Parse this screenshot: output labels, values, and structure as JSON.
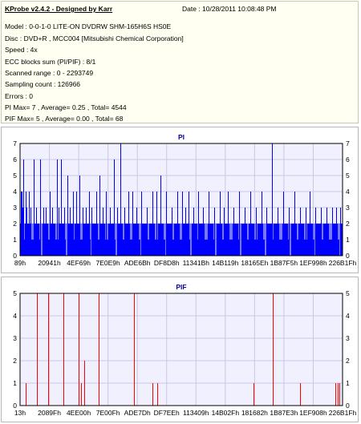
{
  "info": {
    "title": "KProbe v2.4.2 - Designed by Karr",
    "date": "Date : 10/28/2011 10:08:48 PM",
    "lines": [
      "Model : 0-0-1-0 LITE-ON DVDRW SHM-165H6S HS0E",
      "Disc : DVD+R , MCC004 [Mitsubishi Chemical Corporation]",
      "Speed : 4x",
      "ECC blocks sum (PI/PIF) : 8/1",
      "Scanned range : 0 - 2293749",
      "Sampling count : 126966",
      "Errors : 0",
      "PI Max= 7 , Average= 0.25 , Total= 4544",
      "PIF Max= 5 , Average= 0.00 , Total= 68"
    ]
  },
  "colors": {
    "pi_series": "#0000ff",
    "pif_series": "#ff0000",
    "plot_background": "#f0f0ff",
    "grid": "#c8c8e6",
    "title_text": "#0000a0"
  },
  "chart_data": [
    {
      "type": "bar",
      "title": "PI",
      "xlabel": "",
      "ylabel": "",
      "ylim": [
        0,
        7
      ],
      "y_ticks": [
        0,
        1,
        2,
        3,
        4,
        5,
        6,
        7
      ],
      "y_ticks_mirrored_right": true,
      "grid": true,
      "x_range_lba": [
        0,
        2293749
      ],
      "x_tick_labels": [
        "89h",
        "20941h",
        "4EF69h",
        "7E0E9h",
        "ADE6Bh",
        "DF8D8h",
        "11341Bh",
        "14B119h",
        "18165Eh",
        "1B87F5h",
        "1EF998h",
        "226B1Fh"
      ],
      "baseline_level": 2,
      "spikes": [
        {
          "x": 3500,
          "value": 4
        },
        {
          "x": 9000,
          "value": 4
        },
        {
          "x": 16000,
          "value": 3
        },
        {
          "x": 22000,
          "value": 6
        },
        {
          "x": 38000,
          "value": 4
        },
        {
          "x": 45000,
          "value": 3
        },
        {
          "x": 60000,
          "value": 4
        },
        {
          "x": 72000,
          "value": 3
        },
        {
          "x": 95000,
          "value": 6
        },
        {
          "x": 112000,
          "value": 3
        },
        {
          "x": 140000,
          "value": 6
        },
        {
          "x": 168000,
          "value": 3
        },
        {
          "x": 185000,
          "value": 3
        },
        {
          "x": 210000,
          "value": 4
        },
        {
          "x": 230000,
          "value": 3
        },
        {
          "x": 262000,
          "value": 6
        },
        {
          "x": 275000,
          "value": 3
        },
        {
          "x": 290000,
          "value": 6
        },
        {
          "x": 315000,
          "value": 3
        },
        {
          "x": 335000,
          "value": 5
        },
        {
          "x": 352000,
          "value": 3
        },
        {
          "x": 375000,
          "value": 4
        },
        {
          "x": 400000,
          "value": 4
        },
        {
          "x": 420000,
          "value": 5
        },
        {
          "x": 445000,
          "value": 3
        },
        {
          "x": 470000,
          "value": 3
        },
        {
          "x": 490000,
          "value": 4
        },
        {
          "x": 505000,
          "value": 3
        },
        {
          "x": 540000,
          "value": 4
        },
        {
          "x": 565000,
          "value": 5
        },
        {
          "x": 590000,
          "value": 3
        },
        {
          "x": 610000,
          "value": 4
        },
        {
          "x": 640000,
          "value": 3
        },
        {
          "x": 668000,
          "value": 6
        },
        {
          "x": 690000,
          "value": 3
        },
        {
          "x": 712000,
          "value": 7
        },
        {
          "x": 740000,
          "value": 3
        },
        {
          "x": 770000,
          "value": 4
        },
        {
          "x": 800000,
          "value": 4
        },
        {
          "x": 830000,
          "value": 3
        },
        {
          "x": 860000,
          "value": 4
        },
        {
          "x": 900000,
          "value": 3
        },
        {
          "x": 940000,
          "value": 4
        },
        {
          "x": 970000,
          "value": 4
        },
        {
          "x": 1000000,
          "value": 5
        },
        {
          "x": 1040000,
          "value": 4
        },
        {
          "x": 1080000,
          "value": 3
        },
        {
          "x": 1120000,
          "value": 4
        },
        {
          "x": 1150000,
          "value": 4
        },
        {
          "x": 1175000,
          "value": 3
        },
        {
          "x": 1200000,
          "value": 4
        },
        {
          "x": 1235000,
          "value": 3
        },
        {
          "x": 1265000,
          "value": 4
        },
        {
          "x": 1300000,
          "value": 3
        },
        {
          "x": 1340000,
          "value": 4
        },
        {
          "x": 1380000,
          "value": 3
        },
        {
          "x": 1420000,
          "value": 4
        },
        {
          "x": 1450000,
          "value": 3
        },
        {
          "x": 1480000,
          "value": 4
        },
        {
          "x": 1520000,
          "value": 3
        },
        {
          "x": 1560000,
          "value": 4
        },
        {
          "x": 1600000,
          "value": 3
        },
        {
          "x": 1640000,
          "value": 4
        },
        {
          "x": 1680000,
          "value": 3
        },
        {
          "x": 1720000,
          "value": 4
        },
        {
          "x": 1750000,
          "value": 3
        },
        {
          "x": 1790000,
          "value": 7
        },
        {
          "x": 1830000,
          "value": 3
        },
        {
          "x": 1870000,
          "value": 4
        },
        {
          "x": 1910000,
          "value": 3
        },
        {
          "x": 1950000,
          "value": 4
        },
        {
          "x": 1990000,
          "value": 3
        },
        {
          "x": 2030000,
          "value": 3
        },
        {
          "x": 2060000,
          "value": 4
        },
        {
          "x": 2100000,
          "value": 3
        },
        {
          "x": 2140000,
          "value": 3
        },
        {
          "x": 2180000,
          "value": 3
        },
        {
          "x": 2220000,
          "value": 3
        },
        {
          "x": 2250000,
          "value": 3
        },
        {
          "x": 2275000,
          "value": 3
        }
      ]
    },
    {
      "type": "bar",
      "title": "PIF",
      "xlabel": "",
      "ylabel": "",
      "ylim": [
        0,
        5
      ],
      "y_ticks": [
        0,
        1,
        2,
        3,
        4,
        5
      ],
      "y_ticks_mirrored_right": true,
      "grid": true,
      "x_range_lba": [
        0,
        2293749
      ],
      "x_tick_labels": [
        "13h",
        "2089Fh",
        "4EE00h",
        "7E00Fh",
        "ADE7Dh",
        "DF7EEh",
        "113409h",
        "14B02Fh",
        "181682h",
        "1B87E3h",
        "1EF908h",
        "226B1Fh"
      ],
      "spikes": [
        {
          "x": 40000,
          "value": 1
        },
        {
          "x": 118000,
          "value": 5
        },
        {
          "x": 200000,
          "value": 5
        },
        {
          "x": 310000,
          "value": 5
        },
        {
          "x": 418000,
          "value": 5
        },
        {
          "x": 435000,
          "value": 1
        },
        {
          "x": 455000,
          "value": 2
        },
        {
          "x": 560000,
          "value": 5
        },
        {
          "x": 808000,
          "value": 5
        },
        {
          "x": 940000,
          "value": 1
        },
        {
          "x": 975000,
          "value": 1
        },
        {
          "x": 1660000,
          "value": 1
        },
        {
          "x": 1800000,
          "value": 5
        },
        {
          "x": 1990000,
          "value": 1
        },
        {
          "x": 2245000,
          "value": 1
        },
        {
          "x": 2258000,
          "value": 1
        },
        {
          "x": 2272000,
          "value": 1
        }
      ]
    }
  ]
}
